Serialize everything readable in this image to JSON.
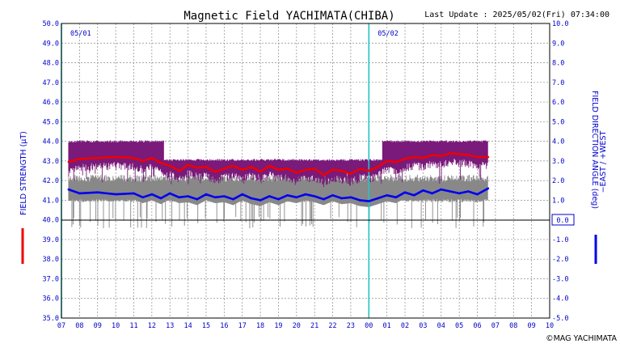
{
  "header": {
    "title": "Magnetic Field YACHIMATA(CHIBA)",
    "last_update": "Last Update : 2025/05/02(Fri) 07:34:00"
  },
  "footer": {
    "copyright": "©MAG YACHIMATA"
  },
  "chart_data": {
    "type": "line",
    "x_ticks": [
      "07",
      "08",
      "09",
      "10",
      "11",
      "12",
      "13",
      "14",
      "15",
      "16",
      "17",
      "18",
      "19",
      "20",
      "21",
      "22",
      "23",
      "00",
      "01",
      "02",
      "03",
      "04",
      "05",
      "06",
      "07",
      "08",
      "09",
      "10"
    ],
    "x_label_hours_start": 7,
    "data_end_hour": 30.6,
    "day_labels": [
      {
        "text": "05/01",
        "hour": 7
      },
      {
        "text": "05/02",
        "hour": 24
      }
    ],
    "left_axis": {
      "label": "FIELD STRENGTH (μT)",
      "ylim": [
        35.0,
        50.0
      ],
      "ticks": [
        "35.0",
        "36.0",
        "37.0",
        "38.0",
        "39.0",
        "40.0",
        "41.0",
        "42.0",
        "43.0",
        "44.0",
        "45.0",
        "46.0",
        "47.0",
        "48.0",
        "49.0",
        "50.0"
      ]
    },
    "right_axis": {
      "label": "FIELD DIRECTION ANGLE (deg)",
      "label2": "−EAST / +WEST",
      "ylim": [
        -5.0,
        10.0
      ],
      "ticks": [
        "-5.0",
        "-4.0",
        "-3.0",
        "-2.0",
        "-1.0",
        "0.0",
        "1.0",
        "2.0",
        "3.0",
        "4.0",
        "5.0",
        "6.0",
        "7.0",
        "8.0",
        "9.0",
        "10.0"
      ],
      "zero_box": "0.0"
    },
    "grid": true,
    "series": [
      {
        "name": "FIELD STRENGTH",
        "axis": "left",
        "color": "#ee0000",
        "x": [
          7.4,
          8,
          9,
          10,
          11,
          11.5,
          12,
          12.5,
          13,
          13.5,
          14,
          14.5,
          15,
          15.5,
          16,
          16.5,
          17,
          17.5,
          18,
          18.5,
          19,
          19.5,
          20,
          20.5,
          21,
          21.5,
          22,
          22.5,
          23,
          23.5,
          24,
          24.5,
          25,
          25.5,
          26,
          26.5,
          27,
          27.5,
          28,
          28.5,
          29,
          29.5,
          30,
          30.6
        ],
        "values": [
          42.95,
          43.1,
          43.15,
          43.2,
          43.15,
          43.0,
          43.15,
          42.9,
          42.75,
          42.5,
          42.8,
          42.65,
          42.7,
          42.45,
          42.6,
          42.75,
          42.55,
          42.7,
          42.45,
          42.75,
          42.55,
          42.6,
          42.4,
          42.55,
          42.6,
          42.3,
          42.55,
          42.5,
          42.35,
          42.6,
          42.5,
          42.7,
          43.0,
          42.95,
          43.1,
          43.2,
          43.15,
          43.3,
          43.25,
          43.4,
          43.35,
          43.3,
          43.2,
          43.2
        ]
      },
      {
        "name": "FIELD DIRECTION ANGLE",
        "axis": "right",
        "color": "#0000ee",
        "x": [
          7.4,
          8,
          9,
          10,
          11,
          11.5,
          12,
          12.5,
          13,
          13.5,
          14,
          14.5,
          15,
          15.5,
          16,
          16.5,
          17,
          17.5,
          18,
          18.5,
          19,
          19.5,
          20,
          20.5,
          21,
          21.5,
          22,
          22.5,
          23,
          23.5,
          24,
          24.5,
          25,
          25.5,
          26,
          26.5,
          27,
          27.5,
          28,
          28.5,
          29,
          29.5,
          30,
          30.6
        ],
        "values": [
          1.55,
          1.35,
          1.4,
          1.3,
          1.35,
          1.15,
          1.3,
          1.1,
          1.35,
          1.15,
          1.2,
          1.05,
          1.3,
          1.15,
          1.2,
          1.05,
          1.3,
          1.1,
          1.0,
          1.2,
          1.05,
          1.25,
          1.15,
          1.3,
          1.2,
          1.05,
          1.25,
          1.1,
          1.15,
          1.0,
          0.95,
          1.1,
          1.25,
          1.15,
          1.4,
          1.25,
          1.5,
          1.35,
          1.55,
          1.45,
          1.35,
          1.45,
          1.3,
          1.6
        ]
      },
      {
        "name": "FIELD STRENGTH raw",
        "axis": "left",
        "color": "#7a1a7a",
        "band": [
          42.4,
          44.05
        ],
        "spike_low": 41.6
      },
      {
        "name": "FIELD DIRECTION ANGLE raw",
        "axis": "right",
        "color": "#888888",
        "band": [
          0.9,
          2.3
        ],
        "spike_low": -0.45
      }
    ]
  }
}
